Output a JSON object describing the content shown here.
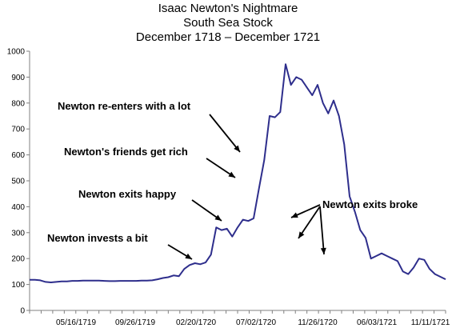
{
  "chart_data": {
    "type": "line",
    "title": [
      "Isaac Newton's Nightmare",
      "South Sea Stock",
      "December 1718 – December 1721"
    ],
    "ylim": [
      0,
      1000
    ],
    "y_ticks": [
      0,
      100,
      200,
      300,
      400,
      500,
      600,
      700,
      800,
      900,
      1000
    ],
    "x_tick_labels": [
      "05/16/1719",
      "09/26/1719",
      "02/20/1720",
      "07/02/1720",
      "11/26/1720",
      "06/03/1721",
      "11/11/1721"
    ],
    "grid": false,
    "legend": "none",
    "series": [
      {
        "color": "#2e2e8c",
        "x": [
          0,
          2,
          4,
          6,
          8,
          10,
          12,
          14,
          16,
          18,
          20,
          22,
          24,
          26,
          28,
          30,
          32,
          34,
          36,
          38,
          40,
          42,
          44,
          46,
          48,
          50,
          52,
          54,
          56,
          58,
          60,
          62,
          64,
          66,
          68,
          70,
          72,
          74,
          76,
          78,
          80,
          82,
          84,
          86,
          88,
          90,
          92,
          94,
          96,
          98,
          100,
          102,
          104,
          106,
          108,
          110,
          112,
          114,
          116,
          118,
          120,
          122,
          124,
          126,
          128,
          130,
          132,
          134,
          136,
          138,
          140,
          142,
          144,
          146,
          148,
          150,
          152,
          154,
          156
        ],
        "values": [
          118,
          118,
          116,
          110,
          108,
          110,
          112,
          112,
          114,
          114,
          115,
          115,
          115,
          115,
          114,
          113,
          113,
          114,
          114,
          114,
          114,
          115,
          115,
          116,
          120,
          125,
          128,
          135,
          132,
          160,
          175,
          182,
          178,
          185,
          215,
          320,
          310,
          315,
          285,
          320,
          350,
          345,
          355,
          470,
          580,
          750,
          745,
          765,
          950,
          870,
          900,
          890,
          860,
          830,
          870,
          800,
          760,
          810,
          750,
          640,
          440,
          380,
          310,
          280,
          200,
          210,
          220,
          210,
          200,
          190,
          150,
          140,
          165,
          200,
          195,
          160,
          140,
          130,
          120
        ]
      }
    ],
    "annotations": [
      "Newton re-enters with a lot",
      "Newton's friends get rich",
      "Newton exits happy",
      "Newton invests a bit",
      "Newton exits broke"
    ]
  }
}
